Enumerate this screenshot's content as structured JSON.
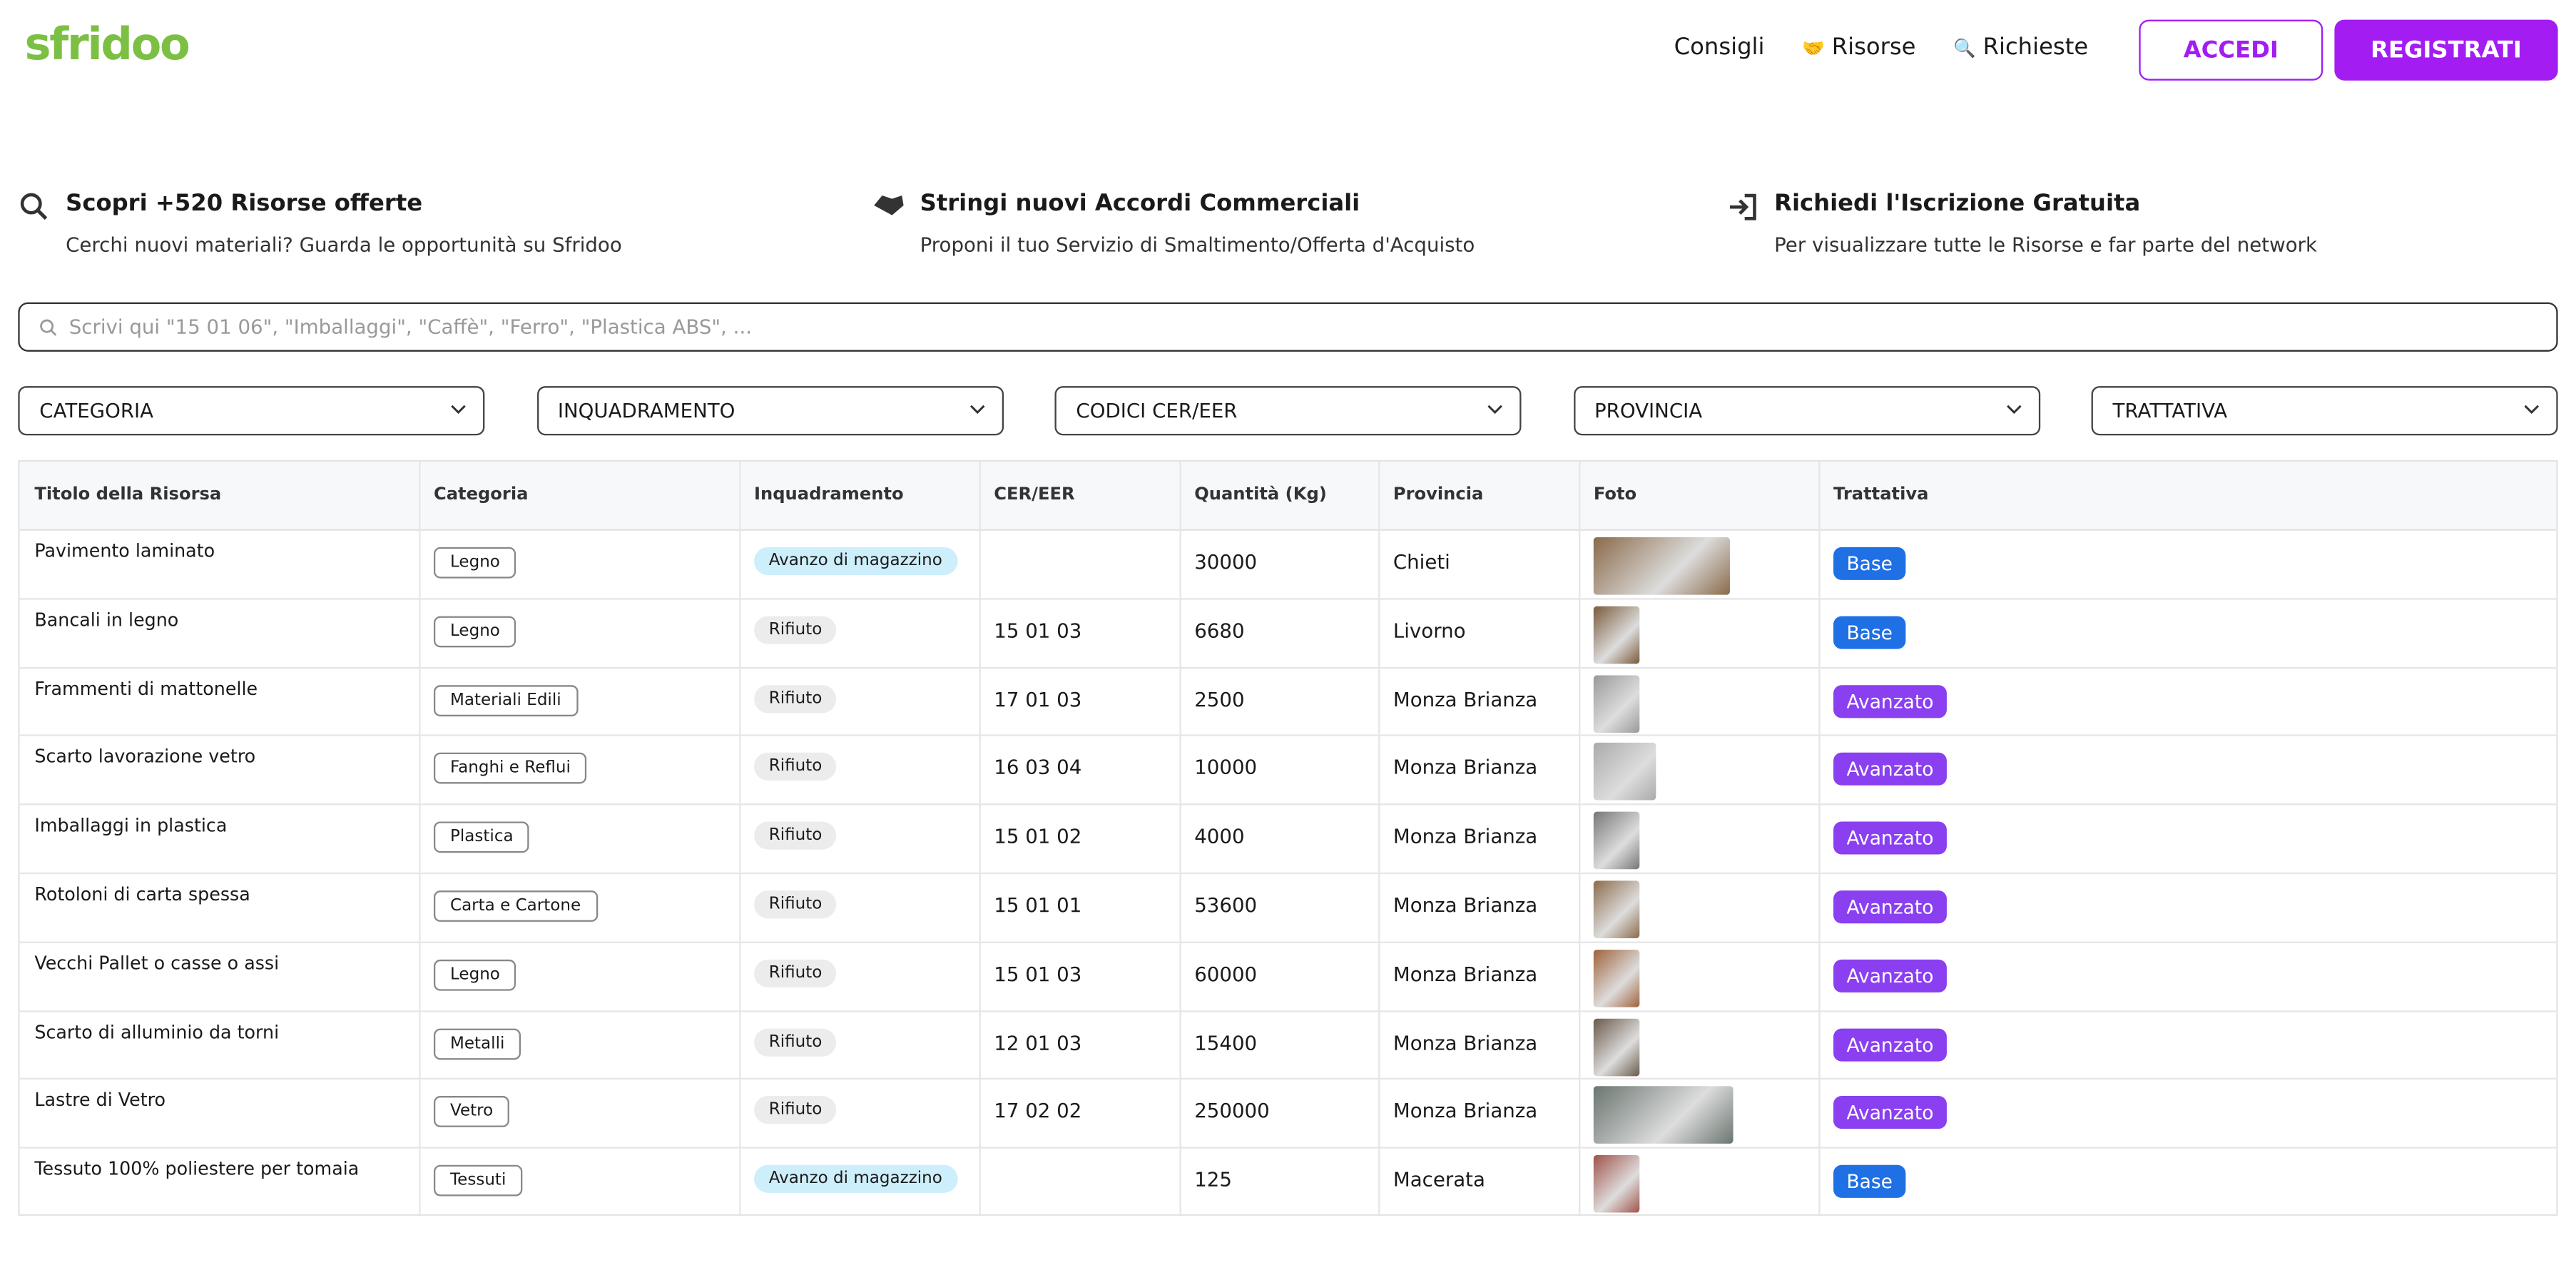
{
  "header": {
    "logo": "sfridoo",
    "nav": [
      {
        "label": "Consigli"
      },
      {
        "icon": "🤝",
        "label": "Risorse"
      },
      {
        "icon": "🔍",
        "label": "Richieste"
      }
    ],
    "login": "ACCEDI",
    "register": "REGISTRATI"
  },
  "features": [
    {
      "title": "Scopri +520 Risorse offerte",
      "text": "Cerchi nuovi materiali? Guarda le opportunità su Sfridoo"
    },
    {
      "title": "Stringi nuovi Accordi Commerciali",
      "text": "Proponi il tuo Servizio di Smaltimento/Offerta d'Acquisto"
    },
    {
      "title": "Richiedi l'Iscrizione Gratuita",
      "text": "Per visualizzare tutte le Risorse e far parte del network"
    }
  ],
  "search": {
    "placeholder": "Scrivi qui \"15 01 06\", \"Imballaggi\", \"Caffè\", \"Ferro\", \"Plastica ABS\", ..."
  },
  "filters": [
    "CATEGORIA",
    "INQUADRAMENTO",
    "CODICI CER/EER",
    "PROVINCIA",
    "TRATTATIVA"
  ],
  "table": {
    "headers": [
      "Titolo della Risorsa",
      "Categoria",
      "Inquadramento",
      "CER/EER",
      "Quantità (Kg)",
      "Provincia",
      "Foto",
      "Trattativa"
    ],
    "rows": [
      {
        "title": "Pavimento laminato",
        "category": "Legno",
        "type": "Avanzo di magazzino",
        "type_color": "#cdeefb",
        "qty": 30000,
        "province": "Chieti",
        "deal": "Base",
        "deal_color": "#1f6fe5"
      },
      {
        "title": "Bancali in legno",
        "category": "Legno",
        "type": "Rifiuto",
        "type_color": "#ececec",
        "cer": "15 01 03",
        "qty": 6680,
        "province": "Livorno",
        "deal": "Base",
        "deal_color": "#1f6fe5"
      },
      {
        "title": "Frammenti di mattonelle",
        "category": "Materiali Edili",
        "type": "Rifiuto",
        "type_color": "#ececec",
        "cer": "17 01 03",
        "qty": 2500,
        "province": "Monza Brianza",
        "deal": "Avanzato",
        "deal_color": "#8a3ff0"
      },
      {
        "title": "Scarto lavorazione vetro",
        "category": "Fanghi e Reflui",
        "type": "Rifiuto",
        "type_color": "#ececec",
        "cer": "16 03 04",
        "qty": 10000,
        "province": "Monza Brianza",
        "deal": "Avanzato",
        "deal_color": "#8a3ff0"
      },
      {
        "title": "Imballaggi in plastica",
        "category": "Plastica",
        "type": "Rifiuto",
        "type_color": "#ececec",
        "cer": "15 01 02",
        "qty": 4000,
        "province": "Monza Brianza",
        "deal": "Avanzato",
        "deal_color": "#8a3ff0"
      },
      {
        "title": "Rotoloni di carta spessa",
        "category": "Carta e Cartone",
        "type": "Rifiuto",
        "type_color": "#ececec",
        "cer": "15 01 01",
        "qty": 53600,
        "province": "Monza Brianza",
        "deal": "Avanzato",
        "deal_color": "#8a3ff0"
      },
      {
        "title": "Vecchi Pallet o casse o assi",
        "category": "Legno",
        "type": "Rifiuto",
        "type_color": "#ececec",
        "cer": "15 01 03",
        "qty": 60000,
        "province": "Monza Brianza",
        "deal": "Avanzato",
        "deal_color": "#8a3ff0"
      },
      {
        "title": "Scarto di alluminio da torni",
        "category": "Metalli",
        "type": "Rifiuto",
        "type_color": "#ececec",
        "cer": "12 01 03",
        "qty": 15400,
        "province": "Monza Brianza",
        "deal": "Avanzato",
        "deal_color": "#8a3ff0"
      },
      {
        "title": "Lastre di Vetro",
        "category": "Vetro",
        "type": "Rifiuto",
        "type_color": "#ececec",
        "cer": "17 02 02",
        "qty": 250000,
        "province": "Monza Brianza",
        "deal": "Avanzato",
        "deal_color": "#8a3ff0"
      },
      {
        "title": "Tessuto 100% poliestere per tomaia",
        "category": "Tessuti",
        "type": "Avanzo di magazzino",
        "type_color": "#cdeefb",
        "qty": 125,
        "province": "Macerata",
        "deal": "Base",
        "deal_color": "#1f6fe5"
      }
    ]
  }
}
